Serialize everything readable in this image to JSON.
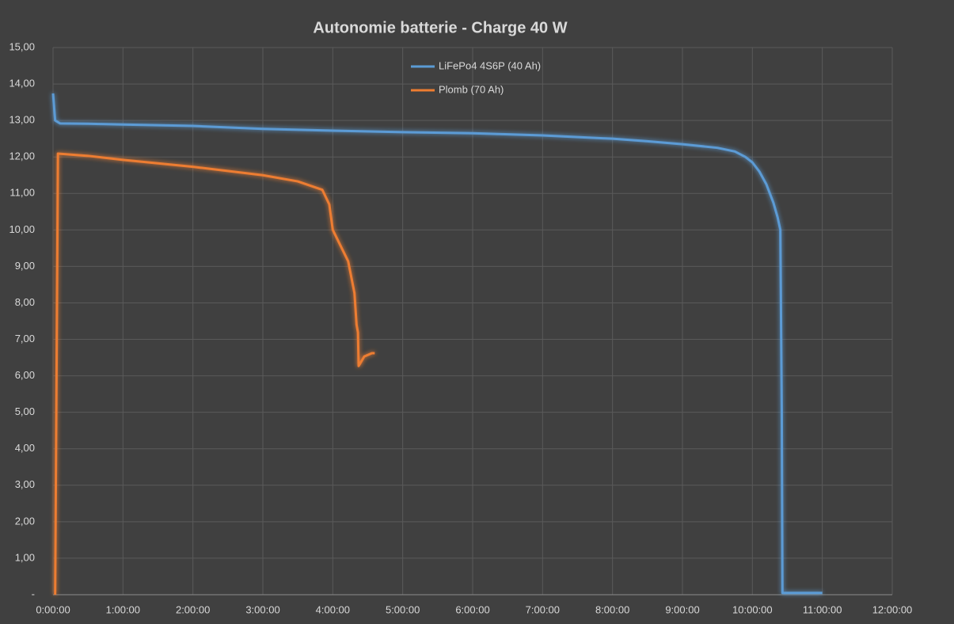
{
  "chart_data": {
    "type": "line",
    "title": "Autonomie batterie - Charge 40 W",
    "xlim": [
      0,
      12
    ],
    "xticks": [
      {
        "value": 0,
        "label": "0:00:00"
      },
      {
        "value": 1,
        "label": "1:00:00"
      },
      {
        "value": 2,
        "label": "2:00:00"
      },
      {
        "value": 3,
        "label": "3:00:00"
      },
      {
        "value": 4,
        "label": "4:00:00"
      },
      {
        "value": 5,
        "label": "5:00:00"
      },
      {
        "value": 6,
        "label": "6:00:00"
      },
      {
        "value": 7,
        "label": "7:00:00"
      },
      {
        "value": 8,
        "label": "8:00:00"
      },
      {
        "value": 9,
        "label": "9:00:00"
      },
      {
        "value": 10,
        "label": "10:00:00"
      },
      {
        "value": 11,
        "label": "11:00:00"
      },
      {
        "value": 12,
        "label": "12:00:00"
      }
    ],
    "ylim": [
      0,
      15
    ],
    "yticks": [
      {
        "value": 0,
        "label": "-"
      },
      {
        "value": 1,
        "label": "1,00"
      },
      {
        "value": 2,
        "label": "2,00"
      },
      {
        "value": 3,
        "label": "3,00"
      },
      {
        "value": 4,
        "label": "4,00"
      },
      {
        "value": 5,
        "label": "5,00"
      },
      {
        "value": 6,
        "label": "6,00"
      },
      {
        "value": 7,
        "label": "7,00"
      },
      {
        "value": 8,
        "label": "8,00"
      },
      {
        "value": 9,
        "label": "9,00"
      },
      {
        "value": 10,
        "label": "10,00"
      },
      {
        "value": 11,
        "label": "11,00"
      },
      {
        "value": 12,
        "label": "12,00"
      },
      {
        "value": 13,
        "label": "13,00"
      },
      {
        "value": 14,
        "label": "14,00"
      },
      {
        "value": 15,
        "label": "15,00"
      }
    ],
    "grid": true,
    "legend": "top",
    "series": [
      {
        "name": "LiFePo4 4S6P (40 Ah)",
        "color": "#5b9bd5",
        "x": [
          0,
          0.03,
          0.1,
          0.5,
          1,
          2,
          3,
          4,
          5,
          6,
          7,
          8,
          8.5,
          9,
          9.5,
          9.75,
          9.9,
          10,
          10.1,
          10.2,
          10.3,
          10.36,
          10.4,
          10.42,
          10.43,
          11.0
        ],
        "values": [
          13.74,
          13.0,
          12.92,
          12.91,
          12.89,
          12.85,
          12.77,
          12.72,
          12.68,
          12.65,
          12.59,
          12.5,
          12.43,
          12.35,
          12.25,
          12.15,
          12.0,
          11.85,
          11.6,
          11.25,
          10.75,
          10.35,
          10.0,
          5.0,
          0.05,
          0.05
        ]
      },
      {
        "name": "Plomb (70 Ah)",
        "color": "#ed7d31",
        "x": [
          0.03,
          0.07,
          0.5,
          1,
          2,
          3,
          3.5,
          3.85,
          3.95,
          4.0,
          4.22,
          4.31,
          4.34,
          4.36,
          4.37,
          4.45,
          4.56,
          4.6
        ],
        "values": [
          0,
          12.09,
          12.03,
          11.92,
          11.73,
          11.5,
          11.33,
          11.1,
          10.7,
          10.0,
          9.14,
          8.27,
          7.4,
          7.19,
          6.27,
          6.53,
          6.62,
          6.62
        ]
      }
    ]
  }
}
